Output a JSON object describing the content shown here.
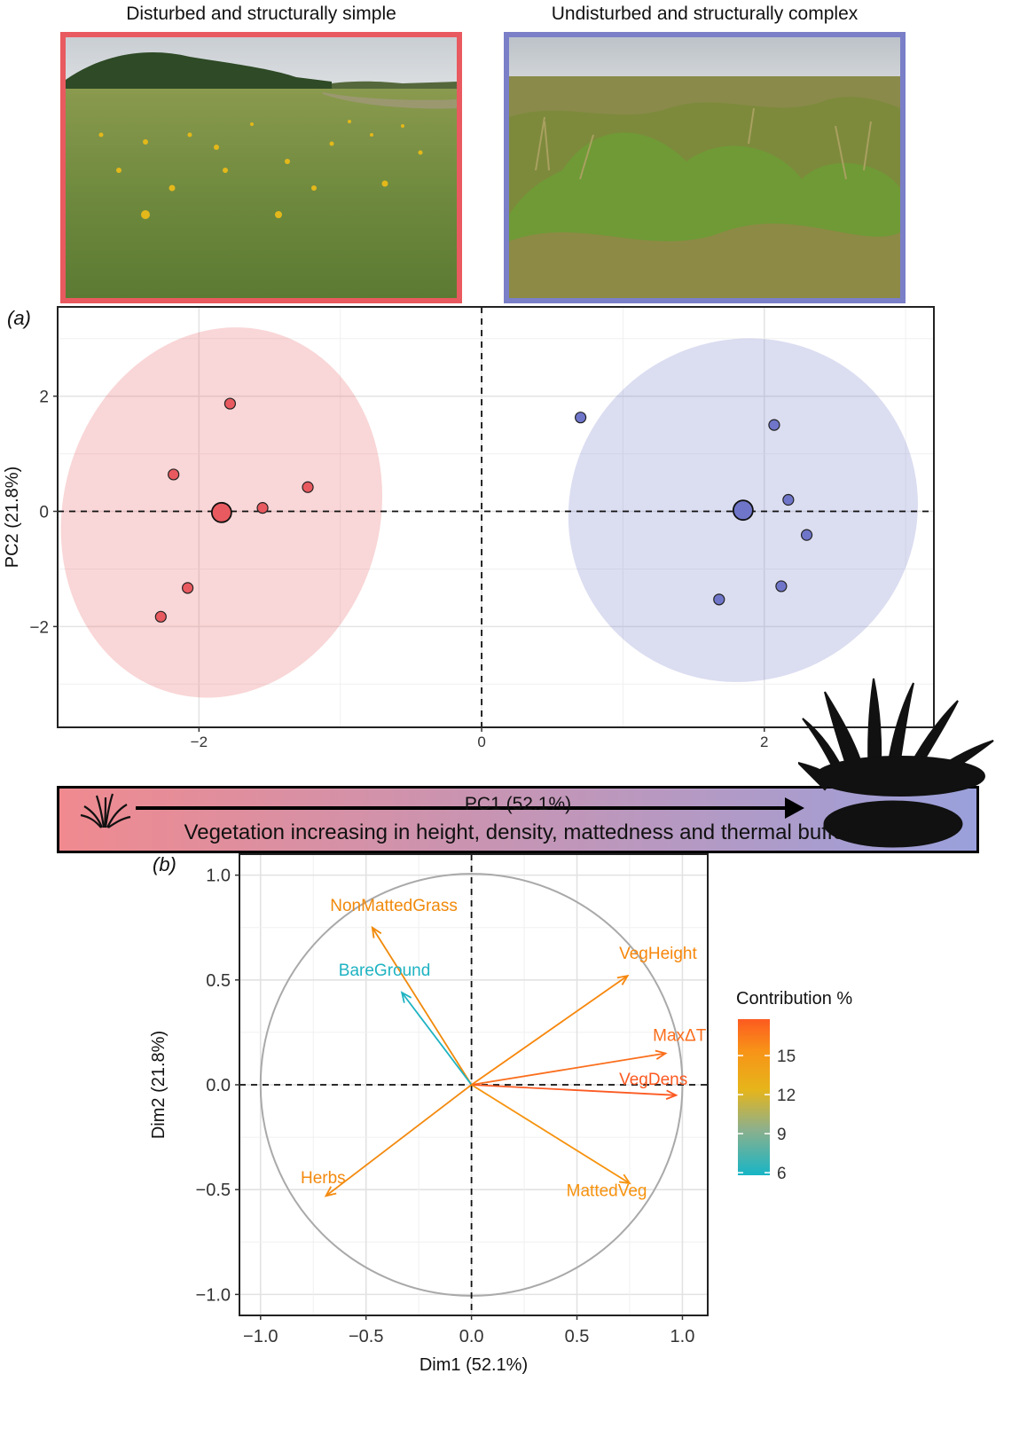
{
  "photos": {
    "left_title": "Disturbed and structurally simple",
    "right_title": "Undisturbed and structurally complex",
    "left_color": "#e85a5f",
    "right_color": "#7a7fc8"
  },
  "panel_a": {
    "letter": "(a)",
    "ylabel": "PC2 (21.8%)",
    "pc1_label": "PC1 (52.1%)",
    "caption": "Vegetation increasing in height, density, mattedness and thermal buffer",
    "gradient": [
      "#f08a8f",
      "#9aa0db"
    ]
  },
  "panel_b": {
    "letter": "(b)",
    "legend_title": "Contribution %"
  },
  "chart_data": [
    {
      "type": "scatter",
      "title": "",
      "xlabel": "",
      "ylabel": "PC2 (21.8%)",
      "xlim": [
        -3.0,
        3.2
      ],
      "ylim": [
        -3.75,
        3.55
      ],
      "xticks": [
        -2,
        0,
        2
      ],
      "xtick_labels": [
        "−2",
        "0",
        "2"
      ],
      "yticks": [
        -2,
        0,
        2
      ],
      "ytick_labels": [
        "−2",
        "0",
        "2"
      ],
      "grid": true,
      "reference_lines": [
        {
          "axis": "x",
          "value": 0
        },
        {
          "axis": "y",
          "value": 0
        }
      ],
      "series": [
        {
          "color": "#e85a5f",
          "points": [
            [
              -1.78,
              1.87
            ],
            [
              -2.18,
              0.64
            ],
            [
              -1.23,
              0.42
            ],
            [
              -1.55,
              0.06
            ],
            [
              -2.08,
              -1.33
            ],
            [
              -2.27,
              -1.83
            ]
          ],
          "centroid": [
            -1.84,
            -0.02
          ],
          "ellipse": {
            "center": [
              -1.84,
              -0.02
            ],
            "rx": 1.12,
            "ry": 3.25,
            "rotation_deg": 16
          }
        },
        {
          "color": "#6f76c9",
          "points": [
            [
              0.7,
              1.63
            ],
            [
              2.07,
              1.5
            ],
            [
              2.17,
              0.2
            ],
            [
              2.3,
              -0.41
            ],
            [
              2.12,
              -1.3
            ],
            [
              1.68,
              -1.53
            ]
          ],
          "centroid": [
            1.85,
            0.02
          ],
          "ellipse": {
            "center": [
              1.85,
              0.02
            ],
            "rx": 1.25,
            "ry": 2.95,
            "rotation_deg": -32
          }
        }
      ]
    },
    {
      "type": "scatter",
      "title": "",
      "xlabel": "Dim1 (52.1%)",
      "ylabel": "Dim2 (21.8%)",
      "xlim": [
        -1.1,
        1.12
      ],
      "ylim": [
        -1.1,
        1.1
      ],
      "xticks": [
        -1.0,
        -0.5,
        0.0,
        0.5,
        1.0
      ],
      "xtick_labels": [
        "−1.0",
        "−0.5",
        "0.0",
        "0.5",
        "1.0"
      ],
      "yticks": [
        -1.0,
        -0.5,
        0.0,
        0.5,
        1.0
      ],
      "ytick_labels": [
        "−1.0",
        "−0.5",
        "0.0",
        "0.5",
        "1.0"
      ],
      "grid": true,
      "unit_circle": true,
      "legend": {
        "title": "Contribution %",
        "ticks": [
          6,
          9,
          12,
          15
        ],
        "range": [
          5.8,
          17.8
        ],
        "placement": "right"
      },
      "vectors": [
        {
          "label": "NonMattedGrass",
          "x": -0.47,
          "y": 0.75,
          "contribution": 14.3,
          "color": "#f0890a"
        },
        {
          "label": "BareGround",
          "x": -0.33,
          "y": 0.44,
          "contribution": 6.1,
          "color": "#1fb3c2"
        },
        {
          "label": "VegHeight",
          "x": 0.74,
          "y": 0.52,
          "contribution": 15.6,
          "color": "#f7870c"
        },
        {
          "label": "MaxΔT",
          "x": 0.92,
          "y": 0.15,
          "contribution": 16.9,
          "color": "#fa6e1c"
        },
        {
          "label": "VegDens",
          "x": 0.97,
          "y": -0.05,
          "contribution": 17.6,
          "color": "#fc5a22"
        },
        {
          "label": "MattedVeg",
          "x": 0.75,
          "y": -0.47,
          "contribution": 15.2,
          "color": "#f6920d"
        },
        {
          "label": "Herbs",
          "x": -0.69,
          "y": -0.53,
          "contribution": 14.8,
          "color": "#f38a0f"
        }
      ]
    }
  ]
}
